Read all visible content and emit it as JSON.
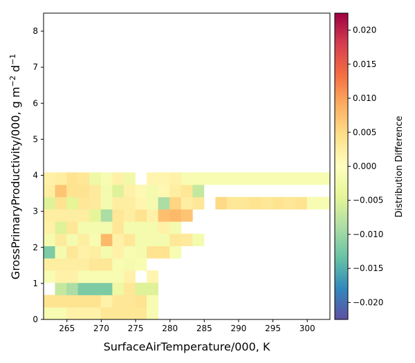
{
  "chart_data": {
    "type": "heatmap",
    "title": "",
    "xlabel": "SurfaceAirTemperature/000,  K",
    "ylabel": "GrossPrimaryProductivity/000,  g m⁻² d⁻¹",
    "xlim": [
      261.6,
      303.3
    ],
    "ylim": [
      0,
      8.5
    ],
    "xticks": [
      265,
      270,
      275,
      280,
      285,
      290,
      295,
      300
    ],
    "yticks": [
      0,
      1,
      2,
      3,
      4,
      5,
      6,
      7,
      8
    ],
    "bin_x_width": 1.668,
    "bin_y_height": 0.34,
    "colorbar": {
      "label": "Distribution Difference",
      "vmin": -0.0225,
      "vmax": 0.0225,
      "ticks": [
        -0.02,
        -0.015,
        -0.01,
        -0.005,
        0.0,
        0.005,
        0.01,
        0.015,
        0.02
      ],
      "tick_labels": [
        "−0.020",
        "−0.015",
        "−0.010",
        "−0.005",
        "0.000",
        "0.005",
        "0.010",
        "0.015",
        "0.020"
      ],
      "colormap": "Spectral_r"
    },
    "cells": [
      [
        0,
        0,
        -0.0015
      ],
      [
        0,
        1,
        -0.0015
      ],
      [
        0,
        2,
        0.002
      ],
      [
        0,
        3,
        0.002
      ],
      [
        0,
        4,
        0.002
      ],
      [
        0,
        5,
        0.0035
      ],
      [
        0,
        6,
        0.0035
      ],
      [
        0,
        7,
        0.0035
      ],
      [
        0,
        8,
        0.0035
      ],
      [
        0,
        9,
        -0.0015
      ],
      [
        1,
        0,
        0.004
      ],
      [
        1,
        1,
        0.004
      ],
      [
        1,
        2,
        0.004
      ],
      [
        1,
        3,
        0.004
      ],
      [
        1,
        4,
        0.004
      ],
      [
        1,
        5,
        0.002
      ],
      [
        1,
        6,
        0.0035
      ],
      [
        1,
        7,
        0.0035
      ],
      [
        1,
        8,
        0.004
      ],
      [
        1,
        9,
        -0.0015
      ],
      [
        2,
        1,
        -0.007
      ],
      [
        2,
        2,
        -0.009
      ],
      [
        2,
        3,
        -0.012
      ],
      [
        2,
        4,
        -0.012
      ],
      [
        2,
        5,
        -0.012
      ],
      [
        2,
        6,
        -0.003
      ],
      [
        2,
        7,
        0.0035
      ],
      [
        2,
        8,
        -0.005
      ],
      [
        2,
        9,
        -0.005
      ],
      [
        3,
        0,
        -0.0015
      ],
      [
        3,
        1,
        0.002
      ],
      [
        3,
        2,
        0.002
      ],
      [
        3,
        3,
        -0.0015
      ],
      [
        3,
        4,
        -0.0015
      ],
      [
        3,
        5,
        -0.0015
      ],
      [
        3,
        6,
        -0.0015
      ],
      [
        3,
        7,
        0.002
      ],
      [
        3,
        9,
        0.0015
      ],
      [
        4,
        0,
        0.0025
      ],
      [
        4,
        1,
        0.0025
      ],
      [
        4,
        2,
        0.0025
      ],
      [
        4,
        3,
        0.0025
      ],
      [
        4,
        4,
        0.0035
      ],
      [
        4,
        5,
        0.0035
      ],
      [
        4,
        6,
        -0.0015
      ],
      [
        4,
        7,
        -0.002
      ],
      [
        4,
        8,
        -0.0015
      ],
      [
        5,
        0,
        -0.012
      ],
      [
        5,
        1,
        -0.002
      ],
      [
        5,
        2,
        0.0035
      ],
      [
        5,
        3,
        0.002
      ],
      [
        5,
        4,
        0.0025
      ],
      [
        5,
        5,
        -0.002
      ],
      [
        5,
        6,
        0.002
      ],
      [
        5,
        7,
        -0.0015
      ],
      [
        5,
        8,
        -0.002
      ],
      [
        5,
        9,
        0.004
      ],
      [
        5,
        10,
        0.004
      ],
      [
        5,
        11,
        -0.0015
      ],
      [
        6,
        0,
        -0.002
      ],
      [
        6,
        1,
        0.003
      ],
      [
        6,
        2,
        -0.002
      ],
      [
        6,
        3,
        0.0025
      ],
      [
        6,
        4,
        -0.0015
      ],
      [
        6,
        5,
        0.008
      ],
      [
        6,
        6,
        0.002
      ],
      [
        6,
        7,
        0.0035
      ],
      [
        6,
        8,
        -0.002
      ],
      [
        6,
        9,
        -0.002
      ],
      [
        6,
        10,
        -0.002
      ],
      [
        6,
        11,
        0.0035
      ],
      [
        6,
        12,
        0.003
      ],
      [
        6,
        13,
        -0.002
      ],
      [
        7,
        0,
        0.002
      ],
      [
        7,
        1,
        -0.005
      ],
      [
        7,
        2,
        0.0035
      ],
      [
        7,
        3,
        -0.002
      ],
      [
        7,
        4,
        -0.002
      ],
      [
        7,
        5,
        -0.002
      ],
      [
        7,
        6,
        0.0035
      ],
      [
        7,
        7,
        -0.002
      ],
      [
        7,
        8,
        -0.002
      ],
      [
        7,
        9,
        -0.002
      ],
      [
        7,
        10,
        0.002
      ],
      [
        7,
        11,
        -0.002
      ],
      [
        8,
        0,
        0.0025
      ],
      [
        8,
        1,
        0.0025
      ],
      [
        8,
        2,
        0.0025
      ],
      [
        8,
        3,
        0.0025
      ],
      [
        8,
        4,
        -0.0045
      ],
      [
        8,
        5,
        -0.009
      ],
      [
        8,
        6,
        0.0035
      ],
      [
        8,
        7,
        0.0025
      ],
      [
        8,
        8,
        0.004
      ],
      [
        8,
        9,
        0.002
      ],
      [
        8,
        10,
        0.0075
      ],
      [
        8,
        11,
        0.008
      ],
      [
        8,
        12,
        0.007
      ],
      [
        9,
        0,
        -0.005
      ],
      [
        9,
        1,
        0.004
      ],
      [
        9,
        2,
        -0.0045
      ],
      [
        9,
        3,
        0.0035
      ],
      [
        9,
        4,
        0.003
      ],
      [
        9,
        5,
        -0.002
      ],
      [
        9,
        6,
        0.0025
      ],
      [
        9,
        7,
        0.0025
      ],
      [
        9,
        8,
        0.0015
      ],
      [
        9,
        9,
        -0.002
      ],
      [
        9,
        10,
        -0.009
      ],
      [
        9,
        11,
        0.0055
      ],
      [
        9,
        12,
        0.0025
      ],
      [
        9,
        13,
        0.0035
      ],
      [
        9,
        15,
        0.005
      ],
      [
        9,
        16,
        0.0035
      ],
      [
        9,
        17,
        0.0035
      ],
      [
        9,
        18,
        0.004
      ],
      [
        9,
        19,
        0.0035
      ],
      [
        9,
        20,
        0.004
      ],
      [
        9,
        21,
        0.0035
      ],
      [
        9,
        22,
        0.004
      ],
      [
        9,
        23,
        -0.0015
      ],
      [
        9,
        24,
        -0.0015
      ]
    ],
    "cells_right": [
      [
        10,
        0,
        0.0025
      ],
      [
        10,
        1,
        0.007
      ],
      [
        10,
        2,
        0.004
      ],
      [
        10,
        3,
        0.004
      ],
      [
        10,
        4,
        0.003
      ],
      [
        10,
        5,
        -0.002
      ],
      [
        10,
        6,
        -0.005
      ],
      [
        10,
        7,
        0.002
      ],
      [
        10,
        8,
        0.001
      ],
      [
        10,
        9,
        -0.002
      ],
      [
        10,
        10,
        0.001
      ],
      [
        10,
        11,
        0.0025
      ],
      [
        10,
        12,
        0.0035
      ],
      [
        10,
        13,
        -0.007
      ],
      [
        11,
        0,
        0.002
      ],
      [
        11,
        1,
        0.0025
      ],
      [
        11,
        2,
        0.004
      ],
      [
        11,
        3,
        0.0035
      ],
      [
        11,
        4,
        -0.003
      ],
      [
        11,
        5,
        -0.0015
      ],
      [
        11,
        6,
        0.002
      ],
      [
        11,
        7,
        -0.0025
      ],
      [
        11,
        9,
        0.0015
      ],
      [
        11,
        10,
        0.0015
      ],
      [
        11,
        11,
        0.002
      ],
      [
        11,
        12,
        -0.0015
      ],
      [
        11,
        13,
        -0.0015
      ],
      [
        11,
        14,
        -0.0015
      ],
      [
        11,
        15,
        -0.0015
      ],
      [
        11,
        16,
        -0.0015
      ],
      [
        11,
        17,
        -0.0015
      ],
      [
        11,
        18,
        -0.0015
      ],
      [
        11,
        19,
        -0.0015
      ],
      [
        11,
        20,
        -0.0015
      ],
      [
        11,
        21,
        -0.0015
      ],
      [
        11,
        22,
        -0.0015
      ],
      [
        11,
        23,
        -0.0015
      ],
      [
        11,
        24,
        -0.0015
      ]
    ]
  }
}
